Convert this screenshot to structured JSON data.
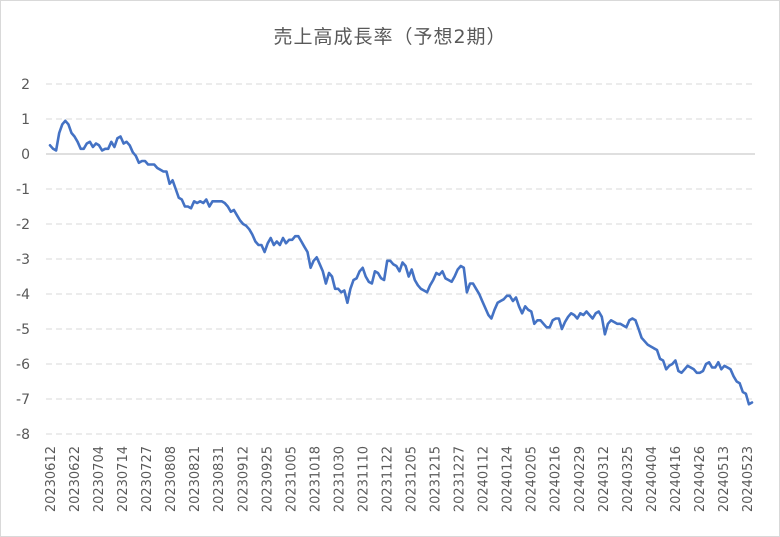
{
  "chart_data": {
    "type": "line",
    "title": "売上高成長率（予想2期）",
    "xlabel": "",
    "ylabel": "",
    "ylim": [
      -8,
      2
    ],
    "yticks": [
      2,
      1,
      0,
      -1,
      -2,
      -3,
      -4,
      -5,
      -6,
      -7,
      -8
    ],
    "grid": true,
    "legend": "none",
    "line_color": "#4472c4",
    "grid_color": "#d9d9d9",
    "x_tick_labels": [
      "20230612",
      "20230622",
      "20230704",
      "20230714",
      "20230727",
      "20230808",
      "20230821",
      "20230831",
      "20230912",
      "20230925",
      "20231005",
      "20231018",
      "20231030",
      "20231110",
      "20231122",
      "20231205",
      "20231215",
      "20231227",
      "20240112",
      "20240124",
      "20240205",
      "20240216",
      "20240229",
      "20240312",
      "20240325",
      "20240404",
      "20240416",
      "20240426",
      "20240513",
      "20240523"
    ],
    "series": [
      {
        "values": [
          0.25,
          0.15,
          0.1,
          0.6,
          0.85,
          0.95,
          0.85,
          0.6,
          0.5,
          0.35,
          0.15,
          0.15,
          0.3,
          0.35,
          0.2,
          0.3,
          0.25,
          0.1,
          0.15,
          0.15,
          0.35,
          0.2,
          0.45,
          0.5,
          0.3,
          0.35,
          0.25,
          0.05,
          -0.05,
          -0.25,
          -0.2,
          -0.2,
          -0.3,
          -0.3,
          -0.3,
          -0.4,
          -0.45,
          -0.5,
          -0.5,
          -0.85,
          -0.75,
          -1.0,
          -1.25,
          -1.3,
          -1.5,
          -1.5,
          -1.55,
          -1.35,
          -1.4,
          -1.35,
          -1.4,
          -1.3,
          -1.5,
          -1.35,
          -1.35,
          -1.35,
          -1.35,
          -1.4,
          -1.5,
          -1.65,
          -1.6,
          -1.75,
          -1.9,
          -2.0,
          -2.05,
          -2.15,
          -2.3,
          -2.5,
          -2.6,
          -2.6,
          -2.8,
          -2.55,
          -2.4,
          -2.6,
          -2.5,
          -2.6,
          -2.4,
          -2.55,
          -2.45,
          -2.45,
          -2.35,
          -2.35,
          -2.5,
          -2.65,
          -2.8,
          -3.25,
          -3.05,
          -2.95,
          -3.15,
          -3.35,
          -3.7,
          -3.4,
          -3.5,
          -3.85,
          -3.85,
          -3.95,
          -3.9,
          -4.25,
          -3.85,
          -3.6,
          -3.55,
          -3.35,
          -3.25,
          -3.5,
          -3.65,
          -3.7,
          -3.35,
          -3.4,
          -3.55,
          -3.6,
          -3.05,
          -3.05,
          -3.15,
          -3.2,
          -3.35,
          -3.1,
          -3.2,
          -3.5,
          -3.3,
          -3.6,
          -3.75,
          -3.85,
          -3.9,
          -3.95,
          -3.75,
          -3.6,
          -3.4,
          -3.45,
          -3.35,
          -3.55,
          -3.6,
          -3.65,
          -3.5,
          -3.3,
          -3.2,
          -3.25,
          -3.95,
          -3.7,
          -3.7,
          -3.85,
          -4.0,
          -4.2,
          -4.4,
          -4.6,
          -4.7,
          -4.45,
          -4.25,
          -4.2,
          -4.15,
          -4.05,
          -4.05,
          -4.2,
          -4.1,
          -4.35,
          -4.55,
          -4.35,
          -4.45,
          -4.5,
          -4.85,
          -4.75,
          -4.75,
          -4.85,
          -4.95,
          -4.95,
          -4.75,
          -4.7,
          -4.7,
          -5.0,
          -4.8,
          -4.65,
          -4.55,
          -4.6,
          -4.7,
          -4.55,
          -4.6,
          -4.5,
          -4.6,
          -4.7,
          -4.55,
          -4.5,
          -4.65,
          -5.15,
          -4.85,
          -4.75,
          -4.8,
          -4.85,
          -4.85,
          -4.9,
          -4.95,
          -4.75,
          -4.7,
          -4.75,
          -5.0,
          -5.25,
          -5.35,
          -5.45,
          -5.5,
          -5.55,
          -5.6,
          -5.85,
          -5.9,
          -6.15,
          -6.05,
          -6.0,
          -5.9,
          -6.2,
          -6.25,
          -6.15,
          -6.05,
          -6.1,
          -6.15,
          -6.25,
          -6.25,
          -6.2,
          -6.0,
          -5.95,
          -6.1,
          -6.1,
          -5.95,
          -6.15,
          -6.05,
          -6.1,
          -6.15,
          -6.35,
          -6.5,
          -6.55,
          -6.8,
          -6.85,
          -7.15,
          -7.1
        ]
      }
    ]
  }
}
